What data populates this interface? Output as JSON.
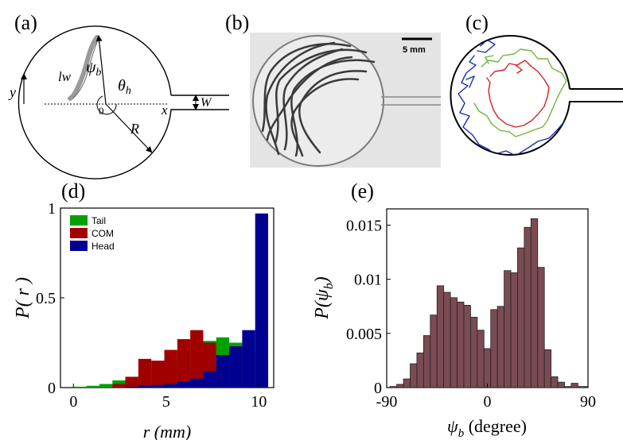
{
  "panel_labels": {
    "a": "(a)",
    "b": "(b)",
    "c": "(c)",
    "d": "(d)",
    "e": "(e)"
  },
  "schematic": {
    "axis_y": "y",
    "axis_x": "x",
    "origin": "0",
    "label_lw": "lw",
    "label_psi": "ψ",
    "label_psi_sub": "b",
    "label_theta": "θ",
    "label_theta_sub": "h",
    "label_R": "R",
    "label_W": "W"
  },
  "photo": {
    "scale_bar_label": "5 mm"
  },
  "chart_data": [
    {
      "type": "bar",
      "panel": "d",
      "xlabel": "r (mm)",
      "ylabel": "P( r )",
      "xlim": [
        -0.7,
        10.8
      ],
      "ylim": [
        0,
        1
      ],
      "xticks": [
        "0",
        "5",
        "10"
      ],
      "yticks": [
        "0",
        "0.5",
        "1"
      ],
      "legend_position": "top-left",
      "bin_width": 0.7,
      "bin_centers": [
        0.35,
        1.05,
        1.75,
        2.45,
        3.15,
        3.85,
        4.55,
        5.25,
        5.95,
        6.65,
        7.35,
        8.05,
        8.75,
        9.45,
        10.15
      ],
      "series": [
        {
          "name": "Tail",
          "color": "#00a000",
          "values": [
            0.005,
            0.01,
            0.02,
            0.04,
            0.06,
            0.09,
            0.12,
            0.15,
            0.19,
            0.22,
            0.26,
            0.28,
            0.25,
            0.2,
            0.18
          ]
        },
        {
          "name": "COM",
          "color": "#a00000",
          "values": [
            0.0,
            0.0,
            0.0,
            0.02,
            0.06,
            0.16,
            0.15,
            0.21,
            0.27,
            0.32,
            0.25,
            0.0,
            0.0,
            0.0,
            0.0
          ]
        },
        {
          "name": "Head",
          "color": "#000090",
          "values": [
            0.0,
            0.0,
            0.0,
            0.0,
            0.005,
            0.01,
            0.015,
            0.02,
            0.035,
            0.05,
            0.09,
            0.18,
            0.23,
            0.32,
            0.97
          ]
        }
      ]
    },
    {
      "type": "bar",
      "panel": "e",
      "xlabel": "ψ",
      "xlabel_sub": "b",
      "xlabel_suffix": " (degree)",
      "ylabel": "P(ψ",
      "ylabel_sub": "b",
      "ylabel_suffix": ")",
      "xlim": [
        -90,
        90
      ],
      "ylim": [
        0,
        0.0165
      ],
      "xticks": [
        "-90",
        "0",
        "90"
      ],
      "yticks": [
        "0",
        "0.005",
        "0.01",
        "0.015"
      ],
      "bin_width": 6,
      "color": "#7b4b53",
      "bin_left_edges": [
        -87,
        -81,
        -75,
        -69,
        -63,
        -57,
        -51,
        -45,
        -39,
        -33,
        -27,
        -21,
        -15,
        -9,
        -3,
        3,
        9,
        15,
        21,
        27,
        33,
        39,
        45,
        51,
        57,
        63,
        69,
        75,
        81,
        87
      ],
      "values": [
        0.0001,
        0.0003,
        0.0008,
        0.0022,
        0.0032,
        0.0048,
        0.0067,
        0.0094,
        0.0088,
        0.0083,
        0.0079,
        0.0076,
        0.0065,
        0.0053,
        0.0036,
        0.0072,
        0.0075,
        0.0108,
        0.0106,
        0.0129,
        0.0148,
        0.0156,
        0.0111,
        0.0035,
        0.001,
        0.0005,
        0.0001,
        0.0004,
        0.0001,
        0.0001
      ]
    }
  ]
}
